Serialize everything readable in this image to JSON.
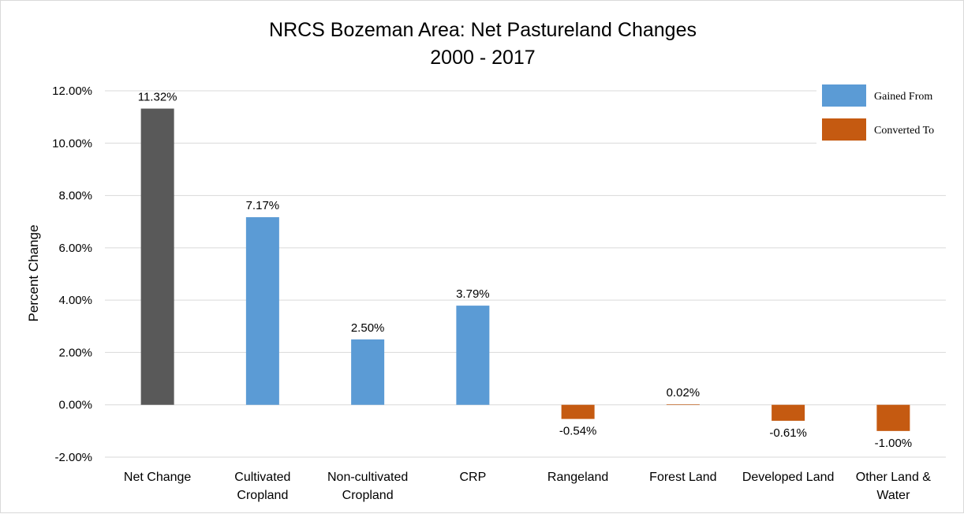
{
  "chart_data": {
    "type": "bar",
    "title": "NRCS Bozeman Area: Net Pastureland Changes",
    "subtitle": "2000 - 2017",
    "xlabel": "",
    "ylabel": "Percent Change",
    "ylim": [
      -2,
      12
    ],
    "ytick_step": 2,
    "yticks": [
      "-2.00%",
      "0.00%",
      "2.00%",
      "4.00%",
      "6.00%",
      "8.00%",
      "10.00%",
      "12.00%"
    ],
    "grid": true,
    "legend_position": "top-right",
    "categories": [
      [
        "Net Change"
      ],
      [
        "Cultivated",
        "Cropland"
      ],
      [
        "Non-cultivated",
        "Cropland"
      ],
      [
        "CRP"
      ],
      [
        "Rangeland"
      ],
      [
        "Forest Land"
      ],
      [
        "Developed Land"
      ],
      [
        "Other Land &",
        "Water"
      ]
    ],
    "values": [
      11.32,
      7.17,
      2.5,
      3.79,
      -0.54,
      0.02,
      -0.61,
      -1.0
    ],
    "data_labels": [
      "11.32%",
      "7.17%",
      "2.50%",
      "3.79%",
      "-0.54%",
      "0.02%",
      "-0.61%",
      "-1.00%"
    ],
    "groups": [
      "net",
      "gained",
      "gained",
      "gained",
      "converted",
      "converted",
      "converted",
      "converted"
    ],
    "legend": [
      {
        "key": "gained",
        "label": "Gained From",
        "color": "#5b9bd5"
      },
      {
        "key": "converted",
        "label": "Converted To",
        "color": "#c55a11"
      }
    ],
    "colors": {
      "net": "#595959",
      "gained": "#5b9bd5",
      "converted": "#c55a11",
      "grid": "#d9d9d9"
    }
  }
}
